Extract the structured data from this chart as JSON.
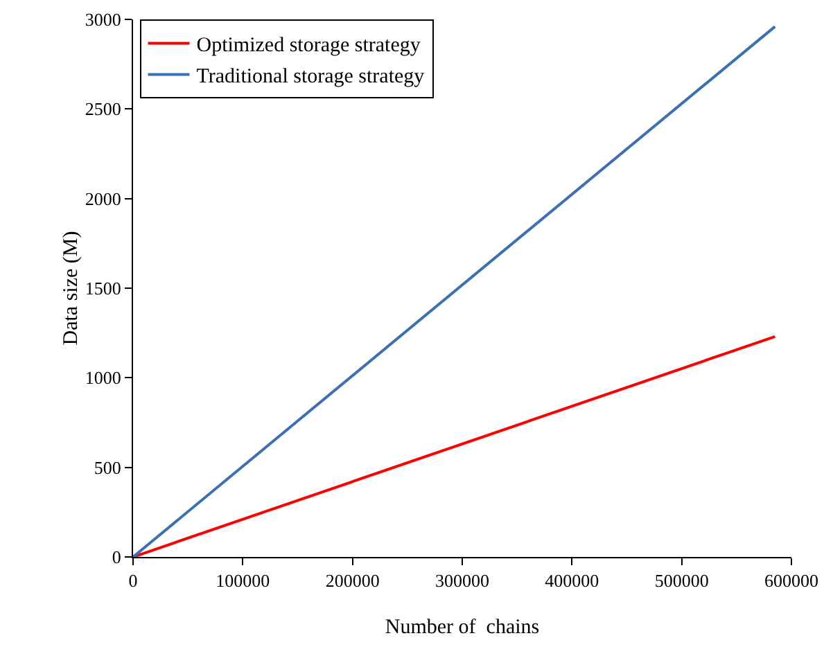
{
  "chart_data": {
    "type": "line",
    "xlabel": "Number of  chains",
    "ylabel": "Data size (M)",
    "x": [
      0,
      585000
    ],
    "series": [
      {
        "name": "Optimized storage strategy",
        "color": "#ff0000",
        "values": [
          0,
          1230
        ]
      },
      {
        "name": "Traditional storage strategy",
        "color": "#3d6fb5",
        "values": [
          0,
          2960
        ]
      }
    ],
    "xlim": [
      0,
      600000
    ],
    "xticks": [
      0,
      100000,
      200000,
      300000,
      400000,
      500000,
      600000
    ],
    "ylim": [
      0,
      3000
    ],
    "yticks": [
      0,
      500,
      1000,
      1500,
      2000,
      2500,
      3000
    ],
    "grid": false,
    "legend": "top left",
    "marker": "none",
    "line_style": "solid"
  }
}
